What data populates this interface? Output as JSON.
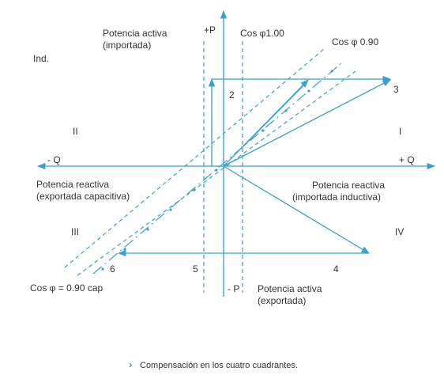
{
  "labels": {
    "active_imported": [
      "Potencia activa",
      "(importada)"
    ],
    "plus_p": "+P",
    "cos_100": "Cos φ1.00",
    "cos_090": "Cos φ 0.90",
    "ind": "Ind.",
    "v2": "2",
    "v3": "3",
    "q2": "II",
    "q1": "I",
    "minus_q": "- Q",
    "plus_q": "+ Q",
    "reactive_exported": [
      "Potencia reactiva",
      "(exportada capacitiva)"
    ],
    "reactive_imported": [
      "Potencia reactiva",
      "(importada inductiva)"
    ],
    "q3": "III",
    "q4": "IV",
    "v4": "4",
    "v5": "5",
    "v6": "6",
    "cos_090_cap": "Cos φ = 0.90 cap",
    "minus_p": "- P",
    "active_exported": [
      "Potencia activa",
      "(exportada)"
    ]
  },
  "caption": {
    "marker": "›",
    "text": "Compensación en los cuatro cuadrantes."
  }
}
